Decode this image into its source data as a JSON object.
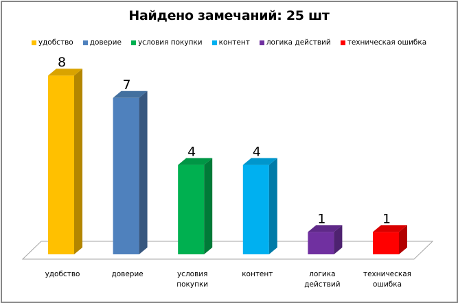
{
  "chart_data": {
    "type": "bar",
    "style": "3d-column",
    "title": "Найдено замечаний: 25 шт",
    "categories": [
      "удобство",
      "доверие",
      "условия покупки",
      "контент",
      "логика действий",
      "техническая ошибка"
    ],
    "category_labels": [
      [
        "удобство"
      ],
      [
        "доверие"
      ],
      [
        "условия",
        "покупки"
      ],
      [
        "контент"
      ],
      [
        "логика",
        "действий"
      ],
      [
        "техническая",
        "ошибка"
      ]
    ],
    "values": [
      8,
      7,
      4,
      4,
      1,
      1
    ],
    "data_labels": [
      "8",
      "7",
      "4",
      "4",
      "1",
      "1"
    ],
    "colors": [
      "#FFC000",
      "#4F81BD",
      "#00B050",
      "#00B0F0",
      "#7030A0",
      "#FF0000"
    ],
    "side_colors": [
      "#B38600",
      "#37577F",
      "#007A38",
      "#007BA8",
      "#4E2270",
      "#B20000"
    ],
    "top_colors": [
      "#D9A300",
      "#43709F",
      "#009645",
      "#0096CC",
      "#5F2988",
      "#D90000"
    ],
    "legend": {
      "position": "top",
      "entries": [
        "удобство",
        "доверие",
        "условия покупки",
        "контент",
        "логика действий",
        "техническая ошибка"
      ]
    },
    "xlabel": "",
    "ylabel": "",
    "ylim": [
      0,
      8
    ],
    "grid": false,
    "axes_visible": false
  },
  "title": "Найдено замечаний: 25 шт"
}
